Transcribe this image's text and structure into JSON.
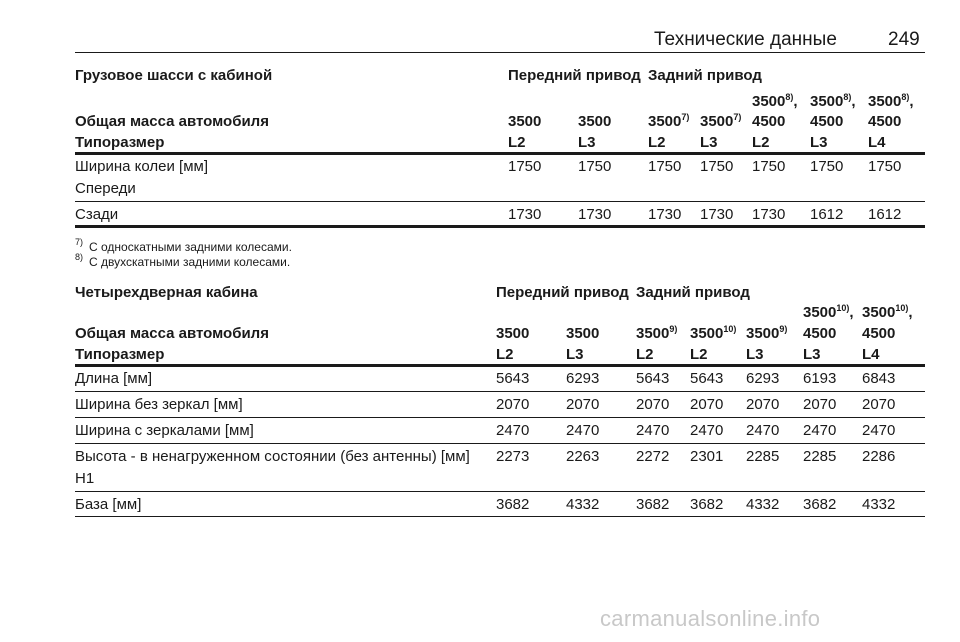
{
  "header": {
    "title": "Технические данные",
    "page_number": "249"
  },
  "table1": {
    "title": "Грузовое шасси с кабиной",
    "drive_front": "Передний привод",
    "drive_rear": "Задний привод",
    "row_mass_label": "Общая масса автомобиля",
    "row_size_label": "Типоразмер",
    "mass_top": [
      "3500",
      "3500",
      "3500"
    ],
    "mass_top_sup": [
      "8)",
      "8)",
      "8)"
    ],
    "mass_top_sep": [
      ",",
      ",",
      ","
    ],
    "mass": [
      "3500",
      "3500",
      "3500",
      "3500",
      "4500",
      "4500",
      "4500"
    ],
    "mass_sup": [
      "",
      "",
      "7)",
      "7)",
      "",
      "",
      ""
    ],
    "sizes": [
      "L2",
      "L3",
      "L2",
      "L3",
      "L2",
      "L3",
      "L4"
    ],
    "rows": [
      {
        "label": "Ширина колеи [мм]",
        "label2": "Спереди",
        "values": [
          "1750",
          "1750",
          "1750",
          "1750",
          "1750",
          "1750",
          "1750"
        ]
      },
      {
        "label": "Сзади",
        "values": [
          "1730",
          "1730",
          "1730",
          "1730",
          "1730",
          "1612",
          "1612"
        ]
      }
    ]
  },
  "footnotes": [
    {
      "mark": "7)",
      "text": "С односкатными задними колесами."
    },
    {
      "mark": "8)",
      "text": "С двухскатными задними колесами."
    }
  ],
  "table2": {
    "title": "Четырехдверная кабина",
    "drive_front": "Передний привод",
    "drive_rear": "Задний привод",
    "row_mass_label": "Общая масса автомобиля",
    "row_size_label": "Типоразмер",
    "mass_top": [
      "3500",
      "3500"
    ],
    "mass_top_sup": [
      "10)",
      "10)"
    ],
    "mass_top_sep": [
      ",",
      ","
    ],
    "mass": [
      "3500",
      "3500",
      "3500",
      "3500",
      "3500",
      "4500",
      "4500"
    ],
    "mass_sup": [
      "",
      "",
      "9)",
      "10)",
      "9)",
      "",
      ""
    ],
    "sizes": [
      "L2",
      "L3",
      "L2",
      "L2",
      "L3",
      "L3",
      "L4"
    ],
    "rows": [
      {
        "label": "Длина [мм]",
        "values": [
          "5643",
          "6293",
          "5643",
          "5643",
          "6293",
          "6193",
          "6843"
        ]
      },
      {
        "label": "Ширина без зеркал [мм]",
        "values": [
          "2070",
          "2070",
          "2070",
          "2070",
          "2070",
          "2070",
          "2070"
        ]
      },
      {
        "label": "Ширина с зеркалами [мм]",
        "values": [
          "2470",
          "2470",
          "2470",
          "2470",
          "2470",
          "2470",
          "2470"
        ]
      },
      {
        "label": "Высота - в ненагруженном состоянии (без антенны) [мм]",
        "label2": "H1",
        "values": [
          "2273",
          "2263",
          "2272",
          "2301",
          "2285",
          "2285",
          "2286"
        ]
      },
      {
        "label": "База [мм]",
        "values": [
          "3682",
          "4332",
          "3682",
          "3682",
          "4332",
          "3682",
          "4332"
        ]
      }
    ]
  },
  "watermark": "carmanualsonline.info"
}
